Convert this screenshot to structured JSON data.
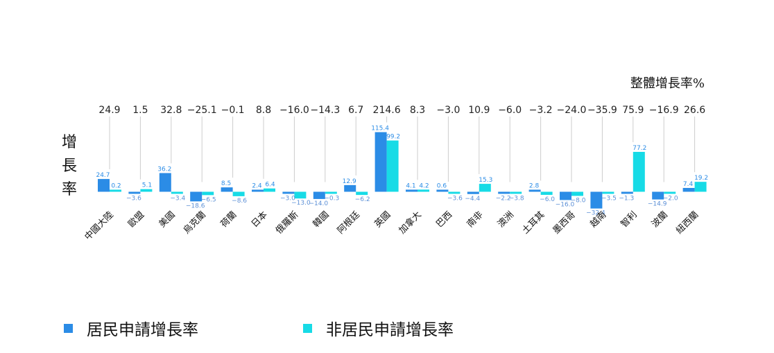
{
  "colors": {
    "resident": "#2b8ce6",
    "non_resident": "#17dbe6",
    "gridline": "#cccccc",
    "neg_label": "#5b8fd6"
  },
  "chart_data": {
    "type": "bar",
    "ylabel": "增長率",
    "total_title": "整體增長率%",
    "categories": [
      "中國大陸",
      "歐盟",
      "美國",
      "烏克蘭",
      "荷蘭",
      "日本",
      "俄羅斯",
      "韓國",
      "阿根廷",
      "英國",
      "加拿大",
      "巴西",
      "南非",
      "澳洲",
      "土耳其",
      "墨西哥",
      "越南",
      "智利",
      "波蘭",
      "紐西蘭"
    ],
    "totals": [
      "24.9",
      "1.5",
      "32.8",
      "−25.1",
      "−0.1",
      "8.8",
      "−16.0",
      "−14.3",
      "6.7",
      "214.6",
      "8.3",
      "−3.0",
      "10.9",
      "−6.0",
      "−3.2",
      "−24.0",
      "−35.9",
      "75.9",
      "−16.9",
      "26.6"
    ],
    "series": [
      {
        "name": "居民申請增長率",
        "values": [
          24.7,
          -3.6,
          36.2,
          -18.6,
          8.5,
          2.4,
          -3.0,
          -14.0,
          12.9,
          115.4,
          4.1,
          0.6,
          -4.4,
          -2.2,
          2.8,
          -16.0,
          -32.4,
          -1.3,
          -14.9,
          7.4
        ]
      },
      {
        "name": "非居民申請增長率",
        "values": [
          0.2,
          5.1,
          -3.4,
          -6.5,
          -8.6,
          6.4,
          -13.0,
          -0.3,
          -6.2,
          99.2,
          4.2,
          -3.6,
          15.3,
          -3.8,
          -6.0,
          -8.0,
          -3.5,
          77.2,
          -2.0,
          19.2
        ]
      }
    ],
    "series_labels": [
      [
        "24.7",
        "−3.6",
        "36.2",
        "−18.6",
        "8.5",
        "2.4",
        "−3.0",
        "−14.0",
        "12.9",
        "115.4",
        "4.1",
        "0.6",
        "−4.4",
        "−2.2",
        "2.8",
        "−16.0",
        "−32.4",
        "−1.3",
        "−14.9",
        "7.4"
      ],
      [
        "0.2",
        "5.1",
        "−3.4",
        "−6.5",
        "−8.6",
        "6.4",
        "−13.0",
        "−0.3",
        "−6.2",
        "99.2",
        "4.2",
        "−3.6",
        "15.3",
        "−3.8",
        "−6.0",
        "−8.0",
        "−3.5",
        "77.2",
        "−2.0",
        "19.2"
      ]
    ]
  }
}
